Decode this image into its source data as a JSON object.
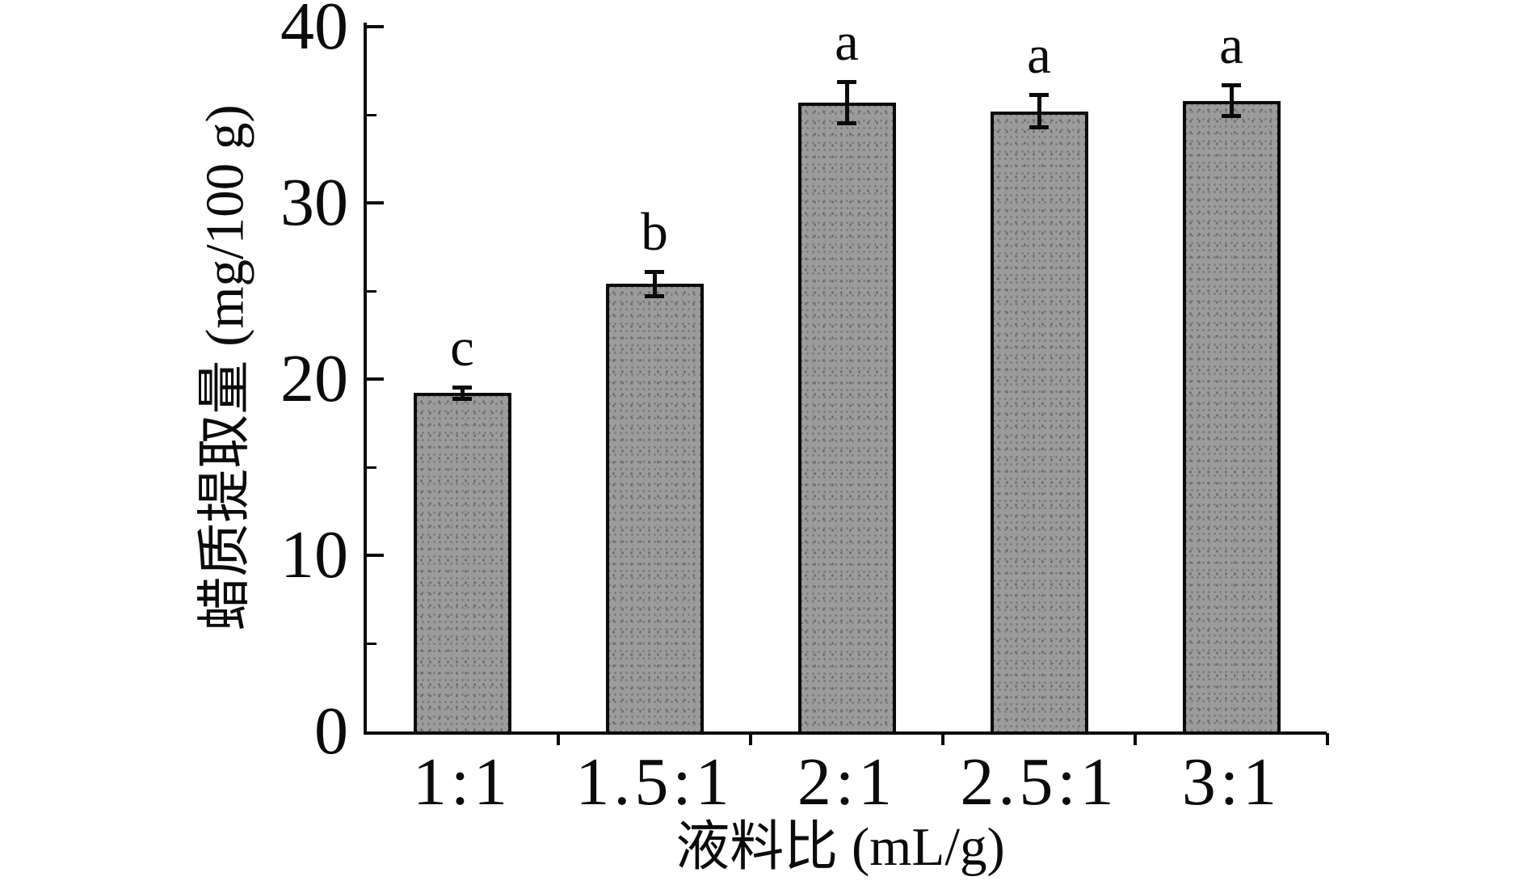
{
  "chart_data": {
    "type": "bar",
    "title": "",
    "xlabel": "液料比 (mL/g)",
    "ylabel": "蜡质提取量 (mg/100 g)",
    "categories": [
      "1:1",
      "1.5:1",
      "2:1",
      "2.5:1",
      "3:1"
    ],
    "values": [
      19.2,
      25.4,
      35.7,
      35.2,
      35.8
    ],
    "errors": [
      0.35,
      0.7,
      1.2,
      0.95,
      0.9
    ],
    "sig_letters": [
      "c",
      "b",
      "a",
      "a",
      "a"
    ],
    "ylim": [
      0,
      40
    ],
    "yticks_major": [
      0,
      10,
      20,
      30,
      40
    ],
    "yticks_minor": [
      5,
      15,
      25,
      35
    ],
    "ytick_labels": [
      "0",
      "10",
      "20",
      "30",
      "40"
    ],
    "grid": false,
    "legend": null,
    "error_bars": "symmetric with caps",
    "colors": {
      "bar_fill": "#9c9c9c",
      "bar_speckle": "#6f6f6f",
      "bar_edge": "#0b0b0b",
      "axis": "#0b0b0b",
      "text": "#0b0b0b",
      "background": "#ffffff"
    }
  }
}
